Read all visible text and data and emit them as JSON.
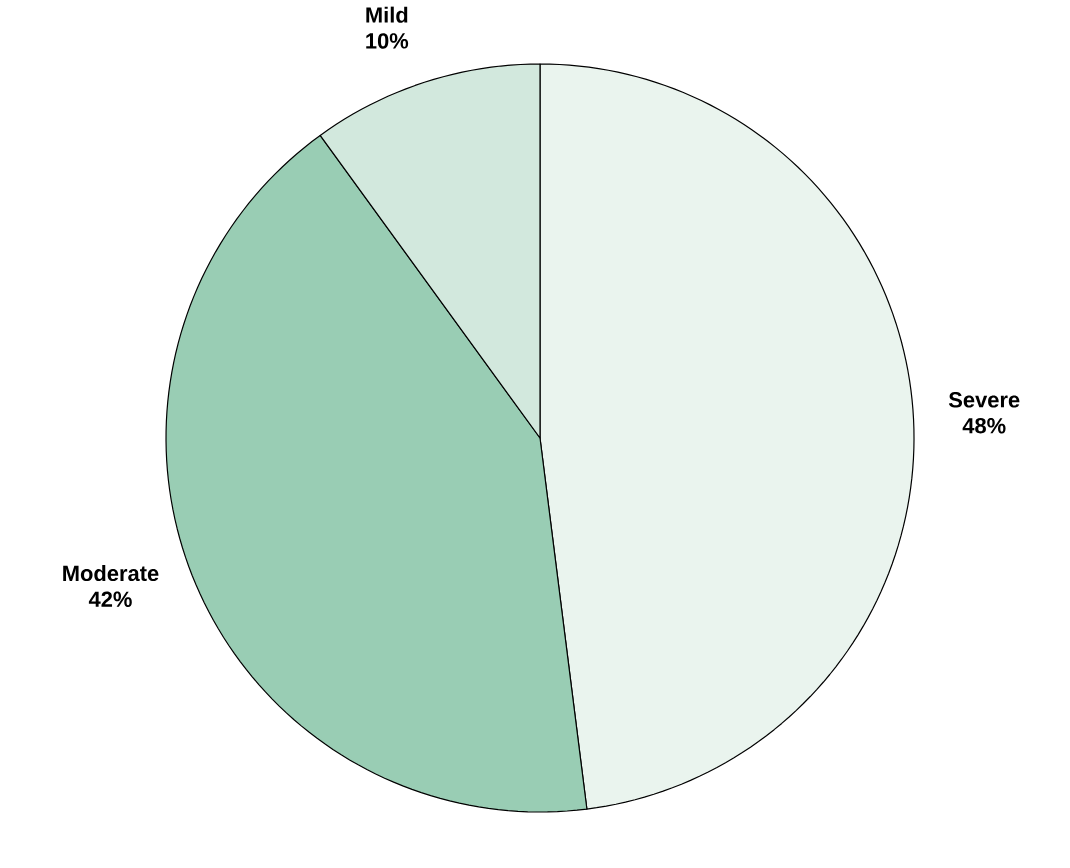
{
  "chart_data": {
    "type": "pie",
    "categories": [
      "Severe",
      "Moderate",
      "Mild"
    ],
    "values": [
      48,
      42,
      10
    ],
    "colors": [
      "#eaf4ee",
      "#99cdb4",
      "#d2e8dd"
    ],
    "data_labels": true,
    "value_labels": [
      "48%",
      "42%",
      "10%"
    ]
  }
}
